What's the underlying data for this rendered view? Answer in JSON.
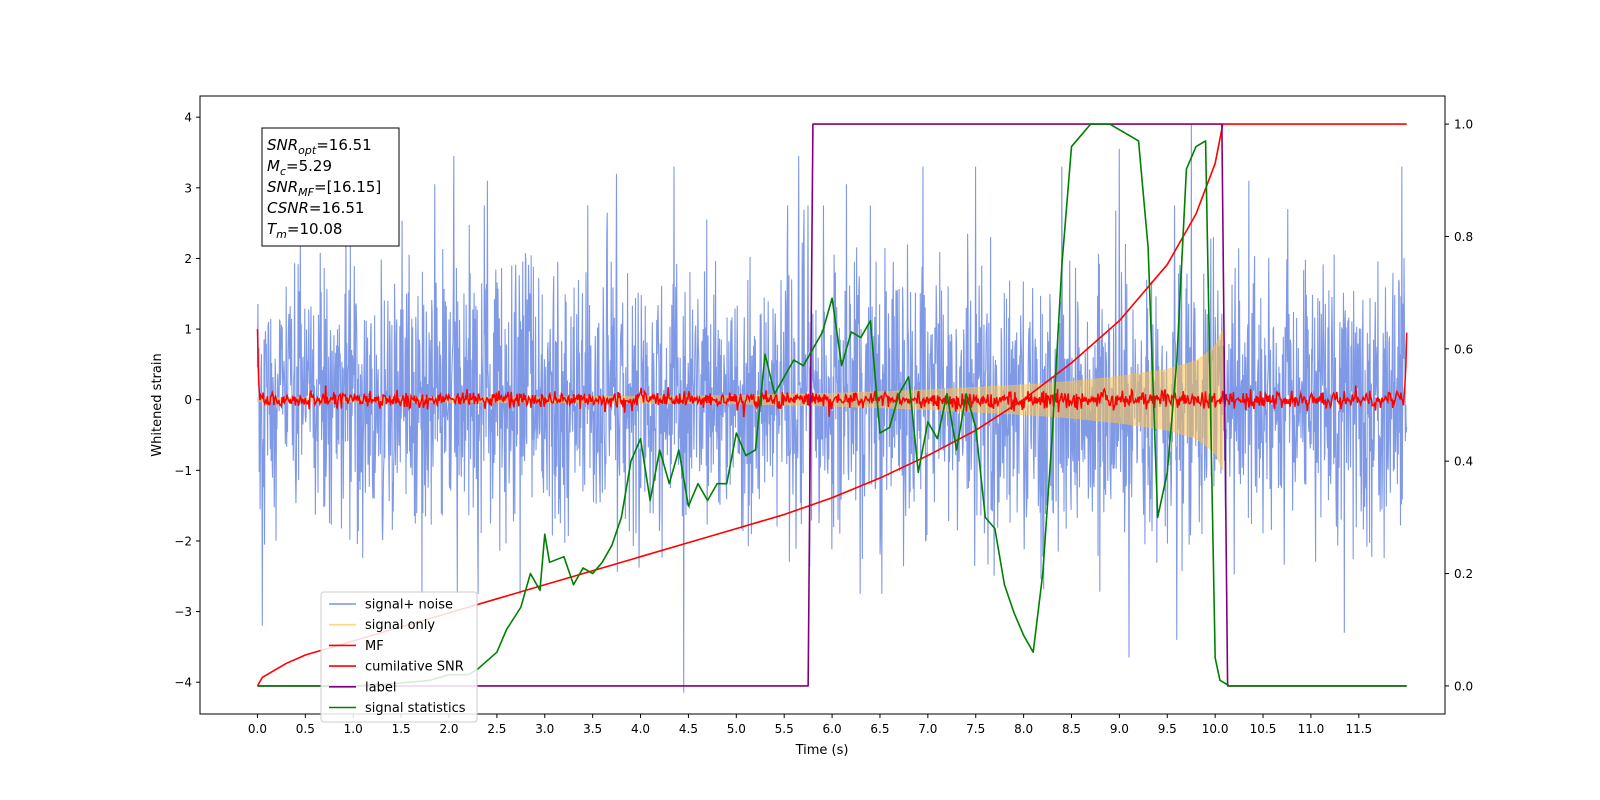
{
  "chart_data": {
    "type": "line",
    "xlabel": "Time (s)",
    "ylabel_left": "Whitened strain",
    "xlim": [
      -0.6,
      12.4
    ],
    "ylim_left": [
      -4.45,
      4.3
    ],
    "ylim_right": [
      -0.05,
      1.05
    ],
    "x_ticks": [
      0.0,
      0.5,
      1.0,
      1.5,
      2.0,
      2.5,
      3.0,
      3.5,
      4.0,
      4.5,
      5.0,
      5.5,
      6.0,
      6.5,
      7.0,
      7.5,
      8.0,
      8.5,
      9.0,
      9.5,
      10.0,
      10.5,
      11.0,
      11.5
    ],
    "x_tick_labels": [
      "0.0",
      "0.5",
      "1.0",
      "1.5",
      "2.0",
      "2.5",
      "3.0",
      "3.5",
      "4.0",
      "4.5",
      "5.0",
      "5.5",
      "6.0",
      "6.5",
      "7.0",
      "7.5",
      "8.0",
      "8.5",
      "9.0",
      "9.5",
      "10.0",
      "10.5",
      "11.0",
      "11.5"
    ],
    "y_left_ticks": [
      4,
      3,
      2,
      1,
      0,
      -1,
      -2,
      -3,
      -4
    ],
    "y_left_tick_labels": [
      "4",
      "3",
      "2",
      "1",
      "0",
      "−1",
      "−2",
      "−3",
      "−4"
    ],
    "y_right_ticks": [
      1.0,
      0.8,
      0.6,
      0.4,
      0.2,
      0.0
    ],
    "y_right_tick_labels": [
      "1.0",
      "0.8",
      "0.6",
      "0.4",
      "0.2",
      "0.0"
    ],
    "grid": false,
    "legend_placement": "lower-left",
    "annotation": {
      "lines": [
        {
          "sym": "SNR",
          "sub": "opt",
          "val": "=16.51"
        },
        {
          "sym": "M",
          "sub": "c",
          "val": "=5.29"
        },
        {
          "sym": "SNR",
          "sub": "MF",
          "val": "=[16.15]"
        },
        {
          "sym": "CSNR",
          "sub": "",
          "val": "=16.51"
        },
        {
          "sym": "T",
          "sub": "m",
          "val": "=10.08"
        }
      ]
    },
    "series": [
      {
        "name": "signal+ noise",
        "axis": "left",
        "color": "#7893e6",
        "kind": "noise-band",
        "x_range": [
          0.0,
          12.0
        ],
        "std": 1.0,
        "extremes": [
          [
            0.05,
            -3.2
          ],
          [
            1.85,
            3.05
          ],
          [
            2.05,
            3.45
          ],
          [
            2.4,
            3.1
          ],
          [
            3.75,
            3.2
          ],
          [
            4.35,
            3.3
          ],
          [
            4.45,
            -4.15
          ],
          [
            5.65,
            3.45
          ],
          [
            6.15,
            3.05
          ],
          [
            6.95,
            3.3
          ],
          [
            7.5,
            3.3
          ],
          [
            8.4,
            3.3
          ],
          [
            9.0,
            3.55
          ],
          [
            9.1,
            -3.65
          ],
          [
            9.75,
            3.9
          ],
          [
            9.6,
            -3.4
          ],
          [
            10.35,
            3.1
          ],
          [
            11.35,
            -3.3
          ],
          [
            11.95,
            3.3
          ]
        ]
      },
      {
        "name": "signal only",
        "axis": "left",
        "color": "#ffc34d",
        "kind": "chirp-envelope",
        "x": [
          0.0,
          3.0,
          5.0,
          6.0,
          7.0,
          8.0,
          8.5,
          9.0,
          9.5,
          9.8,
          10.0,
          10.08
        ],
        "amplitude": [
          0.03,
          0.04,
          0.06,
          0.09,
          0.14,
          0.21,
          0.26,
          0.33,
          0.43,
          0.55,
          0.75,
          1.0
        ]
      },
      {
        "name": "MF",
        "axis": "left",
        "color": "#ff0000",
        "kind": "noisy-baseline",
        "x_range": [
          0.0,
          12.0
        ],
        "center": 0.0,
        "jitter": 0.06,
        "start_value": 1.0,
        "end_value": 0.95
      },
      {
        "name": "cumilative SNR",
        "axis": "right",
        "color": "#ff0000",
        "x": [
          0.0,
          0.05,
          0.3,
          0.5,
          1.0,
          1.5,
          2.0,
          2.5,
          3.0,
          3.5,
          4.0,
          4.5,
          5.0,
          5.5,
          6.0,
          6.5,
          7.0,
          7.5,
          8.0,
          8.5,
          9.0,
          9.5,
          9.8,
          10.0,
          10.08,
          12.0
        ],
        "y": [
          0.0,
          0.015,
          0.04,
          0.055,
          0.08,
          0.105,
          0.13,
          0.155,
          0.18,
          0.205,
          0.23,
          0.255,
          0.28,
          0.305,
          0.335,
          0.37,
          0.41,
          0.455,
          0.51,
          0.575,
          0.65,
          0.75,
          0.84,
          0.93,
          1.0,
          1.0
        ]
      },
      {
        "name": "label",
        "axis": "right",
        "color": "#800080",
        "x": [
          0.0,
          5.75,
          5.8,
          10.07,
          10.13,
          12.0
        ],
        "y": [
          0.0,
          0.0,
          1.0,
          1.0,
          0.0,
          0.0
        ]
      },
      {
        "name": "signal statistics",
        "axis": "right",
        "color": "#008000",
        "x": [
          0.0,
          0.5,
          1.0,
          1.5,
          1.8,
          2.0,
          2.2,
          2.3,
          2.5,
          2.6,
          2.75,
          2.85,
          2.95,
          3.0,
          3.05,
          3.2,
          3.3,
          3.4,
          3.5,
          3.6,
          3.7,
          3.8,
          3.9,
          4.0,
          4.1,
          4.2,
          4.3,
          4.4,
          4.5,
          4.6,
          4.7,
          4.8,
          4.9,
          5.0,
          5.1,
          5.2,
          5.3,
          5.4,
          5.5,
          5.6,
          5.7,
          5.8,
          5.9,
          6.0,
          6.1,
          6.2,
          6.3,
          6.4,
          6.5,
          6.6,
          6.7,
          6.8,
          6.9,
          7.0,
          7.1,
          7.2,
          7.3,
          7.4,
          7.5,
          7.6,
          7.7,
          7.8,
          7.9,
          8.0,
          8.1,
          8.2,
          8.3,
          8.4,
          8.5,
          8.6,
          8.7,
          8.8,
          8.9,
          9.0,
          9.1,
          9.2,
          9.3,
          9.4,
          9.5,
          9.6,
          9.7,
          9.8,
          9.9,
          10.0,
          10.05,
          10.15,
          10.3,
          11.0,
          12.0
        ],
        "y": [
          0.0,
          0.0,
          0.0,
          0.005,
          0.01,
          0.02,
          0.02,
          0.03,
          0.06,
          0.1,
          0.14,
          0.2,
          0.17,
          0.27,
          0.22,
          0.23,
          0.18,
          0.21,
          0.2,
          0.22,
          0.25,
          0.3,
          0.4,
          0.44,
          0.33,
          0.42,
          0.36,
          0.42,
          0.32,
          0.36,
          0.33,
          0.36,
          0.36,
          0.45,
          0.41,
          0.42,
          0.59,
          0.52,
          0.55,
          0.58,
          0.57,
          0.6,
          0.63,
          0.69,
          0.57,
          0.63,
          0.62,
          0.65,
          0.45,
          0.46,
          0.52,
          0.55,
          0.38,
          0.47,
          0.44,
          0.52,
          0.42,
          0.52,
          0.46,
          0.3,
          0.28,
          0.18,
          0.13,
          0.09,
          0.06,
          0.2,
          0.45,
          0.75,
          0.96,
          0.98,
          1.0,
          1.0,
          1.0,
          0.99,
          0.98,
          0.97,
          0.78,
          0.3,
          0.38,
          0.58,
          0.92,
          0.96,
          0.97,
          0.05,
          0.01,
          0.0,
          0.0,
          0.0,
          0.0
        ]
      }
    ]
  }
}
